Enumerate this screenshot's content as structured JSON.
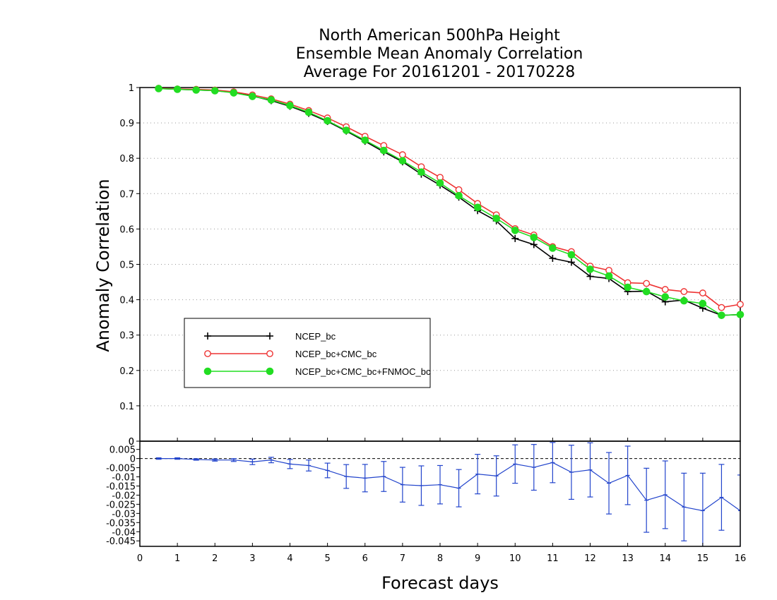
{
  "chart_data": [
    {
      "type": "line",
      "title": [
        "North American 500hPa Height",
        "Ensemble Mean Anomaly Correlation",
        "Average For 20161201 - 20170228"
      ],
      "xlabel": "Forecast days",
      "ylabel": "Anomaly Correlation",
      "xlim": [
        0,
        16
      ],
      "ylim": [
        0,
        1
      ],
      "x_ticks": [
        "0",
        "1",
        "2",
        "3",
        "4",
        "5",
        "6",
        "7",
        "8",
        "9",
        "10",
        "11",
        "12",
        "13",
        "14",
        "15",
        "16"
      ],
      "y_ticks": [
        "0",
        "0.1",
        "0.2",
        "0.3",
        "0.4",
        "0.5",
        "0.6",
        "0.7",
        "0.8",
        "0.9",
        "1"
      ],
      "grid": "dotted-horizontal",
      "legend_position": "lower-left",
      "x": [
        0.5,
        1,
        1.5,
        2,
        2.5,
        3,
        3.5,
        4,
        4.5,
        5,
        5.5,
        6,
        6.5,
        7,
        7.5,
        8,
        8.5,
        9,
        9.5,
        10,
        10.5,
        11,
        11.5,
        12,
        12.5,
        13,
        13.5,
        14,
        14.5,
        15,
        15.5,
        16
      ],
      "series": [
        {
          "name": "NCEP_bc",
          "color": "#000000",
          "marker": "plus",
          "values": [
            0.997,
            0.995,
            0.993,
            0.991,
            0.986,
            0.976,
            0.963,
            0.947,
            0.927,
            0.904,
            0.877,
            0.848,
            0.818,
            0.79,
            0.755,
            0.724,
            0.69,
            0.652,
            0.623,
            0.573,
            0.556,
            0.517,
            0.506,
            0.466,
            0.46,
            0.423,
            0.424,
            0.394,
            0.399,
            0.376,
            0.356,
            0.358
          ]
        },
        {
          "name": "NCEP_bc+CMC_bc",
          "color": "#ee3333",
          "marker": "open-circle",
          "values": [
            0.998,
            0.996,
            0.995,
            0.993,
            0.988,
            0.979,
            0.968,
            0.953,
            0.935,
            0.914,
            0.889,
            0.862,
            0.836,
            0.81,
            0.776,
            0.746,
            0.711,
            0.672,
            0.64,
            0.601,
            0.583,
            0.55,
            0.536,
            0.495,
            0.483,
            0.448,
            0.446,
            0.429,
            0.423,
            0.419,
            0.378,
            0.387
          ]
        },
        {
          "name": "NCEP_bc+CMC_bc+FNMOC_bc",
          "color": "#22dd22",
          "marker": "filled-circle",
          "values": [
            0.997,
            0.995,
            0.993,
            0.991,
            0.985,
            0.975,
            0.965,
            0.949,
            0.93,
            0.906,
            0.879,
            0.851,
            0.822,
            0.793,
            0.761,
            0.73,
            0.694,
            0.661,
            0.63,
            0.596,
            0.576,
            0.546,
            0.527,
            0.486,
            0.467,
            0.435,
            0.423,
            0.408,
            0.397,
            0.389,
            0.356,
            0.358
          ]
        }
      ]
    },
    {
      "type": "line",
      "xlim": [
        0,
        16
      ],
      "ylim": [
        -0.048,
        0.0095
      ],
      "x_ticks": [
        "0",
        "1",
        "2",
        "3",
        "4",
        "5",
        "6",
        "7",
        "8",
        "9",
        "10",
        "11",
        "12",
        "13",
        "14",
        "15",
        "16"
      ],
      "y_ticks": [
        "0.005",
        "0",
        "-0.005",
        "-0.01",
        "-0.015",
        "-0.02",
        "-0.025",
        "-0.03",
        "-0.035",
        "-0.04",
        "-0.045"
      ],
      "top_axis_label": "0",
      "color": "#2244cc",
      "x": [
        0.5,
        1,
        1.5,
        2,
        2.5,
        3,
        3.5,
        4,
        4.5,
        5,
        5.5,
        6,
        6.5,
        7,
        7.5,
        8,
        8.5,
        9,
        9.5,
        10,
        10.5,
        11,
        11.5,
        12,
        12.5,
        13,
        13.5,
        14,
        14.5,
        15,
        15.5,
        16
      ],
      "values": [
        0,
        0,
        -0.0005,
        -0.0008,
        -0.0008,
        -0.0018,
        -0.0008,
        -0.003,
        -0.0038,
        -0.0065,
        -0.0098,
        -0.0107,
        -0.0098,
        -0.0143,
        -0.0148,
        -0.0143,
        -0.0162,
        -0.0085,
        -0.0095,
        -0.003,
        -0.0048,
        -0.0022,
        -0.0075,
        -0.0062,
        -0.0135,
        -0.0092,
        -0.0228,
        -0.0198,
        -0.0265,
        -0.0285,
        -0.0212,
        -0.0285
      ],
      "error_half_width": [
        0.0004,
        0.0004,
        0.0004,
        0.0006,
        0.0008,
        0.0015,
        0.0015,
        0.0025,
        0.003,
        0.004,
        0.0065,
        0.0075,
        0.0082,
        0.0095,
        0.0108,
        0.0105,
        0.0102,
        0.0108,
        0.011,
        0.0105,
        0.0125,
        0.011,
        0.0148,
        0.0148,
        0.0168,
        0.016,
        0.0175,
        0.0185,
        0.0185,
        0.0205,
        0.018,
        0.0195
      ]
    }
  ]
}
